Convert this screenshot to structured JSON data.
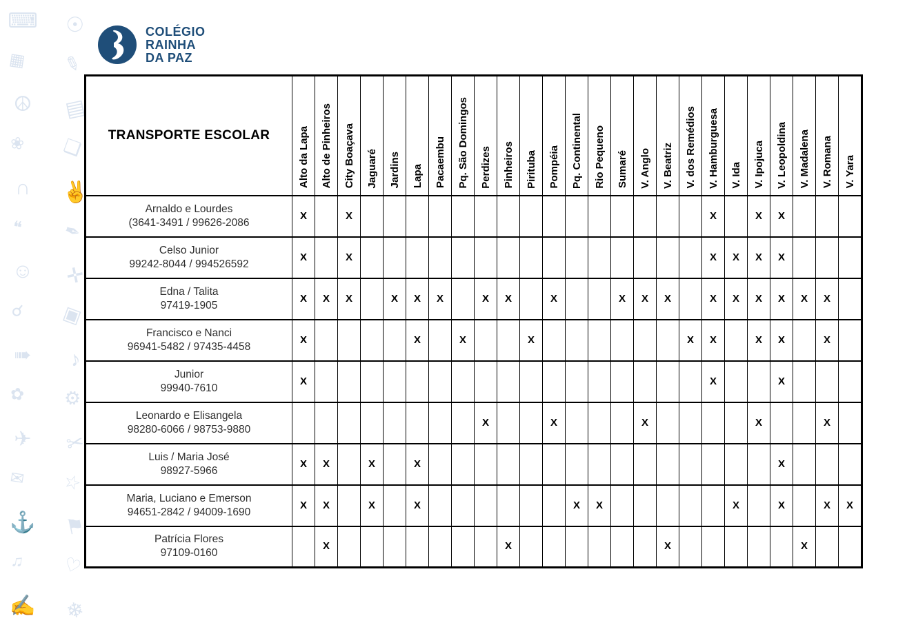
{
  "logo": {
    "line1": "COLÉGIO",
    "line2": "RAINHA",
    "line3": "DA PAZ",
    "color": "#1f4e79"
  },
  "decor": {
    "color": "#dbe4f0",
    "icons": [
      {
        "name": "monitor",
        "glyph": "⌨"
      },
      {
        "name": "globe",
        "glyph": "☉"
      },
      {
        "name": "calculator",
        "glyph": "▦"
      },
      {
        "name": "pencil",
        "glyph": "✎"
      },
      {
        "name": "dove",
        "glyph": "☮"
      },
      {
        "name": "bricks",
        "glyph": "▤"
      },
      {
        "name": "leaf",
        "glyph": "❀"
      },
      {
        "name": "book",
        "glyph": "❏"
      },
      {
        "name": "arch",
        "glyph": "∩"
      },
      {
        "name": "handshake",
        "glyph": "✌"
      },
      {
        "name": "chat-bubbles",
        "glyph": "❝"
      },
      {
        "name": "pen-nib",
        "glyph": "✒"
      },
      {
        "name": "student",
        "glyph": "☺"
      },
      {
        "name": "crossword",
        "glyph": "✛"
      },
      {
        "name": "magnifier",
        "glyph": "☌"
      },
      {
        "name": "basketball-court",
        "glyph": "▣"
      },
      {
        "name": "skateboard",
        "glyph": "➠"
      },
      {
        "name": "music-note",
        "glyph": "♪"
      },
      {
        "name": "paint-flower",
        "glyph": "✿"
      },
      {
        "name": "gear",
        "glyph": "⚙"
      },
      {
        "name": "compass",
        "glyph": "✈"
      },
      {
        "name": "scissors",
        "glyph": "✂"
      },
      {
        "name": "envelope",
        "glyph": "✉"
      },
      {
        "name": "star",
        "glyph": "☆"
      },
      {
        "name": "anchor",
        "glyph": "⚓"
      },
      {
        "name": "flag",
        "glyph": "⚑"
      },
      {
        "name": "music-notes",
        "glyph": "♫"
      },
      {
        "name": "heart",
        "glyph": "♡"
      },
      {
        "name": "writing-hand",
        "glyph": "✍"
      },
      {
        "name": "snowflake",
        "glyph": "❄"
      }
    ]
  },
  "table": {
    "title": "TRANSPORTE ESCOLAR",
    "mark": "X",
    "columns": [
      "Alto da Lapa",
      "Alto de Pinheiros",
      "City Boaçava",
      "Jaguaré",
      "Jardins",
      "Lapa",
      "Pacaembu",
      "Pq. São Domingos",
      "Perdizes",
      "Pinheiros",
      "Pirituba",
      "Pompéia",
      "Pq. Continental",
      "Rio Pequeno",
      "Sumaré",
      "V. Anglo",
      "V. Beatriz",
      "V. dos Remédios",
      "V. Hamburguesa",
      "V. Ida",
      "V. Ipojuca",
      "V. Leopoldina",
      "V. Madalena",
      "V. Romana",
      "V. Yara"
    ],
    "rows": [
      {
        "name": "Arnaldo e Lourdes",
        "phone": "(3641-3491 / 99626-2086",
        "marks": [
          1,
          3,
          19,
          21,
          22
        ]
      },
      {
        "name": "Celso Junior",
        "phone": "99242-8044 / 994526592",
        "marks": [
          1,
          3,
          19,
          20,
          21,
          22
        ]
      },
      {
        "name": "Edna / Talita",
        "phone": "97419-1905",
        "marks": [
          1,
          2,
          3,
          5,
          6,
          7,
          9,
          10,
          12,
          15,
          16,
          17,
          19,
          20,
          21,
          22,
          23,
          24
        ]
      },
      {
        "name": "Francisco e Nanci",
        "phone": "96941-5482 / 97435-4458",
        "marks": [
          1,
          6,
          8,
          11,
          18,
          19,
          21,
          22,
          24
        ]
      },
      {
        "name": "Junior",
        "phone": "99940-7610",
        "marks": [
          1,
          19,
          22
        ]
      },
      {
        "name": "Leonardo e Elisangela",
        "phone": "98280-6066 / 98753-9880",
        "marks": [
          9,
          12,
          16,
          21,
          24
        ]
      },
      {
        "name": "Luis / Maria José",
        "phone": "98927-5966",
        "marks": [
          1,
          2,
          4,
          6,
          22
        ]
      },
      {
        "name": "Maria, Luciano e Emerson",
        "phone": "94651-2842 / 94009-1690",
        "marks": [
          1,
          2,
          4,
          6,
          13,
          14,
          20,
          22,
          24,
          25
        ]
      },
      {
        "name": "Patrícia Flores",
        "phone": "97109-0160",
        "marks": [
          2,
          10,
          17,
          23
        ]
      }
    ]
  }
}
